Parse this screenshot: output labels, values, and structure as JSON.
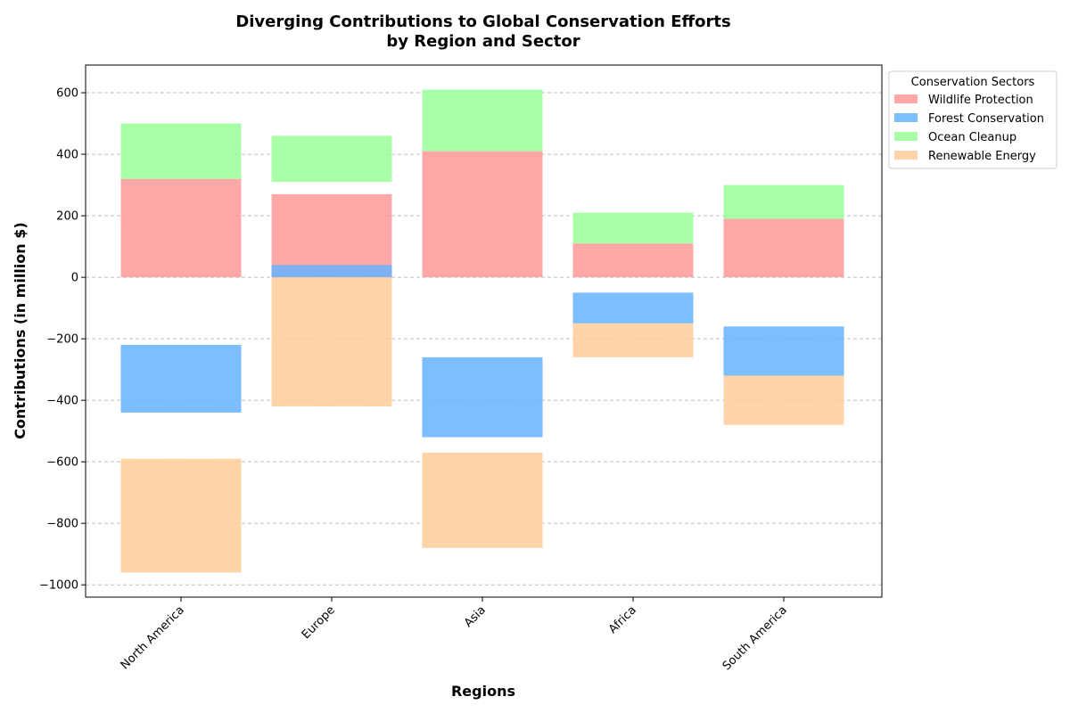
{
  "chart_data": {
    "type": "bar",
    "title": [
      "Diverging Contributions to Global Conservation Efforts",
      "by Region and Sector"
    ],
    "xlabel": "Regions",
    "ylabel": "Contributions (in million $)",
    "ylim": [
      -1040,
      690
    ],
    "yticks": [
      -1000,
      -800,
      -600,
      -400,
      -200,
      0,
      200,
      400,
      600
    ],
    "ytick_labels": [
      "−1000",
      "−800",
      "−600",
      "−400",
      "−200",
      "0",
      "200",
      "400",
      "600"
    ],
    "grid": true,
    "legend_title": "Conservation Sectors",
    "legend_position": "outside upper right",
    "categories": [
      "North America",
      "Europe",
      "Asia",
      "Africa",
      "South America"
    ],
    "series": [
      {
        "name": "Wildlife Protection",
        "color": "#ff9999",
        "segments": [
          [
            0,
            320
          ],
          [
            0,
            270
          ],
          [
            0,
            410
          ],
          [
            0,
            110
          ],
          [
            0,
            190
          ]
        ]
      },
      {
        "name": "Forest Conservation",
        "color": "#66b3ff",
        "segments": [
          [
            -440,
            -220
          ],
          [
            0,
            40
          ],
          [
            -520,
            -260
          ],
          [
            -150,
            -50
          ],
          [
            -320,
            -160
          ]
        ]
      },
      {
        "name": "Ocean Cleanup",
        "color": "#99ff99",
        "segments": [
          [
            320,
            500
          ],
          [
            310,
            460
          ],
          [
            410,
            610
          ],
          [
            110,
            210
          ],
          [
            190,
            300
          ]
        ]
      },
      {
        "name": "Renewable Energy",
        "color": "#ffcc99",
        "segments": [
          [
            -960,
            -590
          ],
          [
            -420,
            0
          ],
          [
            -880,
            -570
          ],
          [
            -260,
            -150
          ],
          [
            -480,
            -320
          ]
        ]
      }
    ]
  }
}
